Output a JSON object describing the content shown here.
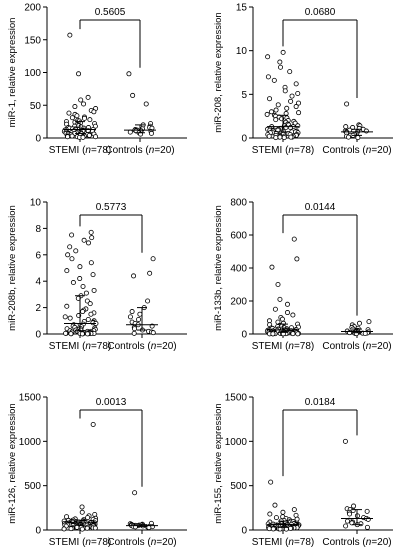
{
  "chart_data": [
    {
      "type": "scatter",
      "ylabel": "miR-1, relative expression",
      "ylim": [
        0,
        200
      ],
      "yticks": [
        0,
        50,
        100,
        150,
        200
      ],
      "categories": [
        "STEMI",
        "Controls"
      ],
      "category_counts": [
        "(n=78)",
        "(n=20)"
      ],
      "p_value": "0.5605",
      "groups": [
        {
          "median": 13,
          "q1": 7,
          "q3": 25,
          "values": [
            157,
            98,
            62,
            58,
            52,
            48,
            45,
            42,
            40,
            38,
            36,
            34,
            32,
            31,
            30,
            28,
            27,
            26,
            25,
            24,
            23,
            22,
            21,
            20,
            19,
            18,
            18,
            17,
            16,
            16,
            15,
            15,
            14,
            14,
            13,
            13,
            13,
            12,
            12,
            12,
            11,
            11,
            11,
            10,
            10,
            10,
            9,
            9,
            9,
            8,
            8,
            8,
            7,
            7,
            7,
            7,
            6,
            6,
            6,
            6,
            5,
            5,
            5,
            5,
            4,
            4,
            4,
            4,
            3,
            3,
            3,
            3,
            2,
            2,
            2,
            2,
            1,
            1
          ]
        },
        {
          "median": 12,
          "q1": 8,
          "q3": 20,
          "values": [
            98,
            65,
            52,
            22,
            20,
            18,
            16,
            15,
            14,
            13,
            12,
            12,
            11,
            11,
            10,
            9,
            9,
            8,
            7,
            6
          ]
        }
      ]
    },
    {
      "type": "scatter",
      "ylabel": "miR-208, relative expression",
      "ylim": [
        0,
        15
      ],
      "yticks": [
        0,
        5,
        10,
        15
      ],
      "categories": [
        "STEMI",
        "Controls"
      ],
      "category_counts": [
        "(n=78)",
        "(n=20)"
      ],
      "p_value": "0.0680",
      "groups": [
        {
          "median": 1.3,
          "q1": 0.7,
          "q3": 2.6,
          "values": [
            9.8,
            9.3,
            8.7,
            8.1,
            7.6,
            7.0,
            6.6,
            6.2,
            5.8,
            5.4,
            5.1,
            4.8,
            4.5,
            4.2,
            4.0,
            3.8,
            3.6,
            3.4,
            3.2,
            3.0,
            2.9,
            2.8,
            2.7,
            2.6,
            2.5,
            2.4,
            2.3,
            2.2,
            2.1,
            2.0,
            1.9,
            1.8,
            1.7,
            1.6,
            1.5,
            1.4,
            1.4,
            1.3,
            1.3,
            1.2,
            1.2,
            1.1,
            1.1,
            1.0,
            1.0,
            0.9,
            0.9,
            0.9,
            0.8,
            0.8,
            0.8,
            0.7,
            0.7,
            0.7,
            0.6,
            0.6,
            0.6,
            0.5,
            0.5,
            0.5,
            0.4,
            0.4,
            0.4,
            0.4,
            0.3,
            0.3,
            0.3,
            0.3,
            0.2,
            0.2,
            0.2,
            0.2,
            0.1,
            0.1,
            0.1,
            0.1,
            0.05,
            0.05
          ]
        },
        {
          "median": 0.7,
          "q1": 0.3,
          "q3": 1.0,
          "values": [
            3.9,
            1.5,
            1.4,
            1.3,
            1.2,
            1.1,
            1.0,
            0.9,
            0.8,
            0.8,
            0.7,
            0.7,
            0.6,
            0.5,
            0.4,
            0.3,
            0.3,
            0.2,
            0.1,
            0.05
          ]
        }
      ]
    },
    {
      "type": "scatter",
      "ylabel": "miR-208b, relative expression",
      "ylim": [
        0,
        10
      ],
      "yticks": [
        0,
        2,
        4,
        6,
        8,
        10
      ],
      "categories": [
        "STEMI",
        "Controls"
      ],
      "category_counts": [
        "(n=78)",
        "(n=20)"
      ],
      "p_value": "0.5773",
      "groups": [
        {
          "median": 0.8,
          "q1": 0.25,
          "q3": 2.9,
          "values": [
            7.7,
            7.5,
            7.3,
            7.1,
            6.9,
            6.6,
            6.3,
            6.0,
            5.7,
            5.4,
            5.1,
            4.8,
            4.5,
            4.2,
            3.9,
            3.6,
            3.3,
            3.1,
            2.9,
            2.7,
            2.5,
            2.3,
            2.1,
            1.9,
            1.8,
            1.7,
            1.6,
            1.5,
            1.4,
            1.3,
            1.2,
            1.1,
            1.0,
            0.95,
            0.9,
            0.85,
            0.8,
            0.75,
            0.7,
            0.65,
            0.6,
            0.55,
            0.5,
            0.45,
            0.4,
            0.4,
            0.35,
            0.35,
            0.3,
            0.3,
            0.25,
            0.25,
            0.2,
            0.2,
            0.2,
            0.15,
            0.15,
            0.15,
            0.1,
            0.1,
            0.1,
            0.1,
            0.08,
            0.08,
            0.06,
            0.06,
            0.05,
            0.05,
            0.04,
            0.04,
            0.03,
            0.03,
            0.02,
            0.02,
            0.02,
            0.01,
            0.01,
            0.01
          ]
        },
        {
          "median": 0.7,
          "q1": 0.3,
          "q3": 2.0,
          "values": [
            5.7,
            4.6,
            4.4,
            2.5,
            2.0,
            1.7,
            1.5,
            1.3,
            1.1,
            0.9,
            0.8,
            0.7,
            0.6,
            0.5,
            0.4,
            0.3,
            0.2,
            0.15,
            0.1,
            0.05
          ]
        }
      ]
    },
    {
      "type": "scatter",
      "ylabel": "miR-133b, relative expression",
      "ylim": [
        0,
        800
      ],
      "yticks": [
        0,
        200,
        400,
        600,
        800
      ],
      "categories": [
        "STEMI",
        "Controls"
      ],
      "category_counts": [
        "(n=78)",
        "(n=20)"
      ],
      "p_value": "0.0144",
      "groups": [
        {
          "median": 25,
          "q1": 10,
          "q3": 60,
          "values": [
            575,
            455,
            405,
            300,
            210,
            180,
            150,
            130,
            115,
            100,
            90,
            80,
            72,
            65,
            60,
            56,
            52,
            48,
            45,
            42,
            40,
            38,
            36,
            34,
            32,
            30,
            29,
            28,
            27,
            26,
            25,
            24,
            23,
            22,
            21,
            20,
            19,
            18,
            17,
            16,
            15,
            15,
            14,
            14,
            13,
            13,
            12,
            12,
            11,
            11,
            10,
            10,
            9,
            9,
            8,
            8,
            7,
            7,
            6,
            6,
            5,
            5,
            5,
            4,
            4,
            4,
            3,
            3,
            3,
            2,
            2,
            2,
            2,
            1,
            1,
            1,
            1,
            1
          ]
        },
        {
          "median": 15,
          "q1": 8,
          "q3": 30,
          "values": [
            75,
            65,
            55,
            45,
            40,
            35,
            30,
            26,
            22,
            18,
            15,
            13,
            11,
            9,
            8,
            6,
            5,
            4,
            3,
            2
          ]
        }
      ]
    },
    {
      "type": "scatter",
      "ylabel": "miR-126, relative expression",
      "ylim": [
        0,
        1500
      ],
      "yticks": [
        0,
        500,
        1000,
        1500
      ],
      "categories": [
        "STEMI",
        "Controls"
      ],
      "category_counts": [
        "(n=78)",
        "(n=20)"
      ],
      "p_value": "0.0013",
      "groups": [
        {
          "median": 80,
          "q1": 55,
          "q3": 110,
          "values": [
            1190,
            260,
            200,
            175,
            160,
            150,
            140,
            132,
            125,
            120,
            115,
            112,
            108,
            105,
            102,
            100,
            98,
            96,
            94,
            92,
            90,
            88,
            87,
            86,
            85,
            84,
            83,
            82,
            81,
            80,
            80,
            79,
            78,
            77,
            76,
            75,
            74,
            73,
            72,
            71,
            70,
            69,
            68,
            67,
            66,
            65,
            64,
            63,
            62,
            61,
            60,
            59,
            58,
            57,
            56,
            55,
            54,
            52,
            50,
            48,
            46,
            44,
            42,
            40,
            38,
            36,
            34,
            32,
            30,
            28,
            26,
            24,
            22,
            20,
            18,
            15,
            12,
            10
          ]
        },
        {
          "median": 50,
          "q1": 40,
          "q3": 60,
          "values": [
            420,
            75,
            70,
            65,
            62,
            60,
            58,
            55,
            52,
            50,
            50,
            48,
            46,
            44,
            42,
            40,
            38,
            35,
            32,
            28
          ]
        }
      ]
    },
    {
      "type": "scatter",
      "ylabel": "miR-155, relative expression",
      "ylim": [
        0,
        1500
      ],
      "yticks": [
        0,
        500,
        1000,
        1500
      ],
      "categories": [
        "STEMI",
        "Controls"
      ],
      "category_counts": [
        "(n=78)",
        "(n=20)"
      ],
      "p_value": "0.0184",
      "groups": [
        {
          "median": 60,
          "q1": 30,
          "q3": 100,
          "values": [
            540,
            280,
            230,
            200,
            180,
            165,
            150,
            140,
            130,
            122,
            115,
            108,
            102,
            98,
            94,
            90,
            86,
            82,
            79,
            76,
            73,
            70,
            68,
            66,
            64,
            62,
            61,
            60,
            59,
            58,
            57,
            56,
            55,
            54,
            53,
            52,
            51,
            50,
            49,
            48,
            47,
            46,
            45,
            44,
            43,
            42,
            41,
            40,
            39,
            38,
            37,
            36,
            35,
            34,
            33,
            32,
            31,
            30,
            29,
            28,
            27,
            26,
            25,
            24,
            23,
            22,
            21,
            20,
            19,
            18,
            17,
            16,
            15,
            14,
            13,
            12,
            11,
            10
          ]
        },
        {
          "median": 130,
          "q1": 60,
          "q3": 230,
          "values": [
            1000,
            270,
            240,
            230,
            220,
            210,
            200,
            180,
            160,
            140,
            130,
            120,
            110,
            100,
            90,
            80,
            70,
            60,
            45,
            30
          ]
        }
      ]
    }
  ]
}
